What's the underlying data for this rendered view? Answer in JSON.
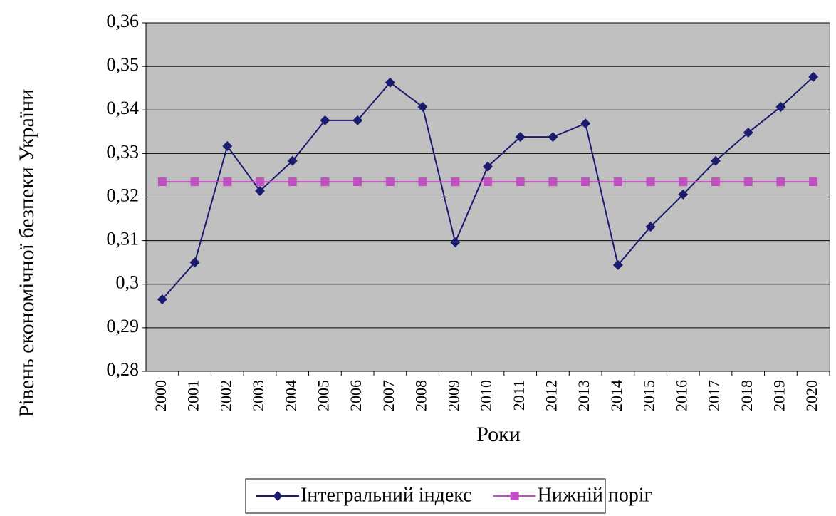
{
  "chart_data": {
    "type": "line",
    "x_label": "Роки",
    "y_label": "Рівень економічної безпеки України",
    "categories": [
      "2000",
      "2001",
      "2002",
      "2003",
      "2004",
      "2005",
      "2006",
      "2007",
      "2008",
      "2009",
      "2010",
      "2011",
      "2012",
      "2013",
      "2014",
      "2015",
      "2016",
      "2017",
      "2018",
      "2019",
      "2020"
    ],
    "series": [
      {
        "name": "Інтегральний індекс",
        "color": "#1a1a6e",
        "marker": "diamond",
        "values": [
          0.2965,
          0.305,
          0.3317,
          0.3214,
          0.3283,
          0.3376,
          0.3376,
          0.3463,
          0.3407,
          0.3096,
          0.327,
          0.3338,
          0.3338,
          0.3369,
          0.3044,
          0.3132,
          0.3206,
          0.3283,
          0.3348,
          0.3407,
          0.3476
        ]
      },
      {
        "name": "Нижній поріг",
        "color": "#c04fbf",
        "marker": "square",
        "values": [
          0.3235,
          0.3235,
          0.3235,
          0.3235,
          0.3235,
          0.3235,
          0.3235,
          0.3235,
          0.3235,
          0.3235,
          0.3235,
          0.3235,
          0.3235,
          0.3235,
          0.3235,
          0.3235,
          0.3235,
          0.3235,
          0.3235,
          0.3235,
          0.3235
        ]
      }
    ],
    "ylim": [
      0.28,
      0.36
    ],
    "yticks": [
      {
        "value": 0.28,
        "label": "0,28"
      },
      {
        "value": 0.29,
        "label": "0,29"
      },
      {
        "value": 0.3,
        "label": "0,3"
      },
      {
        "value": 0.31,
        "label": "0,31"
      },
      {
        "value": 0.32,
        "label": "0,32"
      },
      {
        "value": 0.33,
        "label": "0,33"
      },
      {
        "value": 0.34,
        "label": "0,34"
      },
      {
        "value": 0.35,
        "label": "0,35"
      },
      {
        "value": 0.36,
        "label": "0,36"
      }
    ],
    "grid": true,
    "plot_background": "#c0c0c0",
    "legend": "bottom"
  }
}
